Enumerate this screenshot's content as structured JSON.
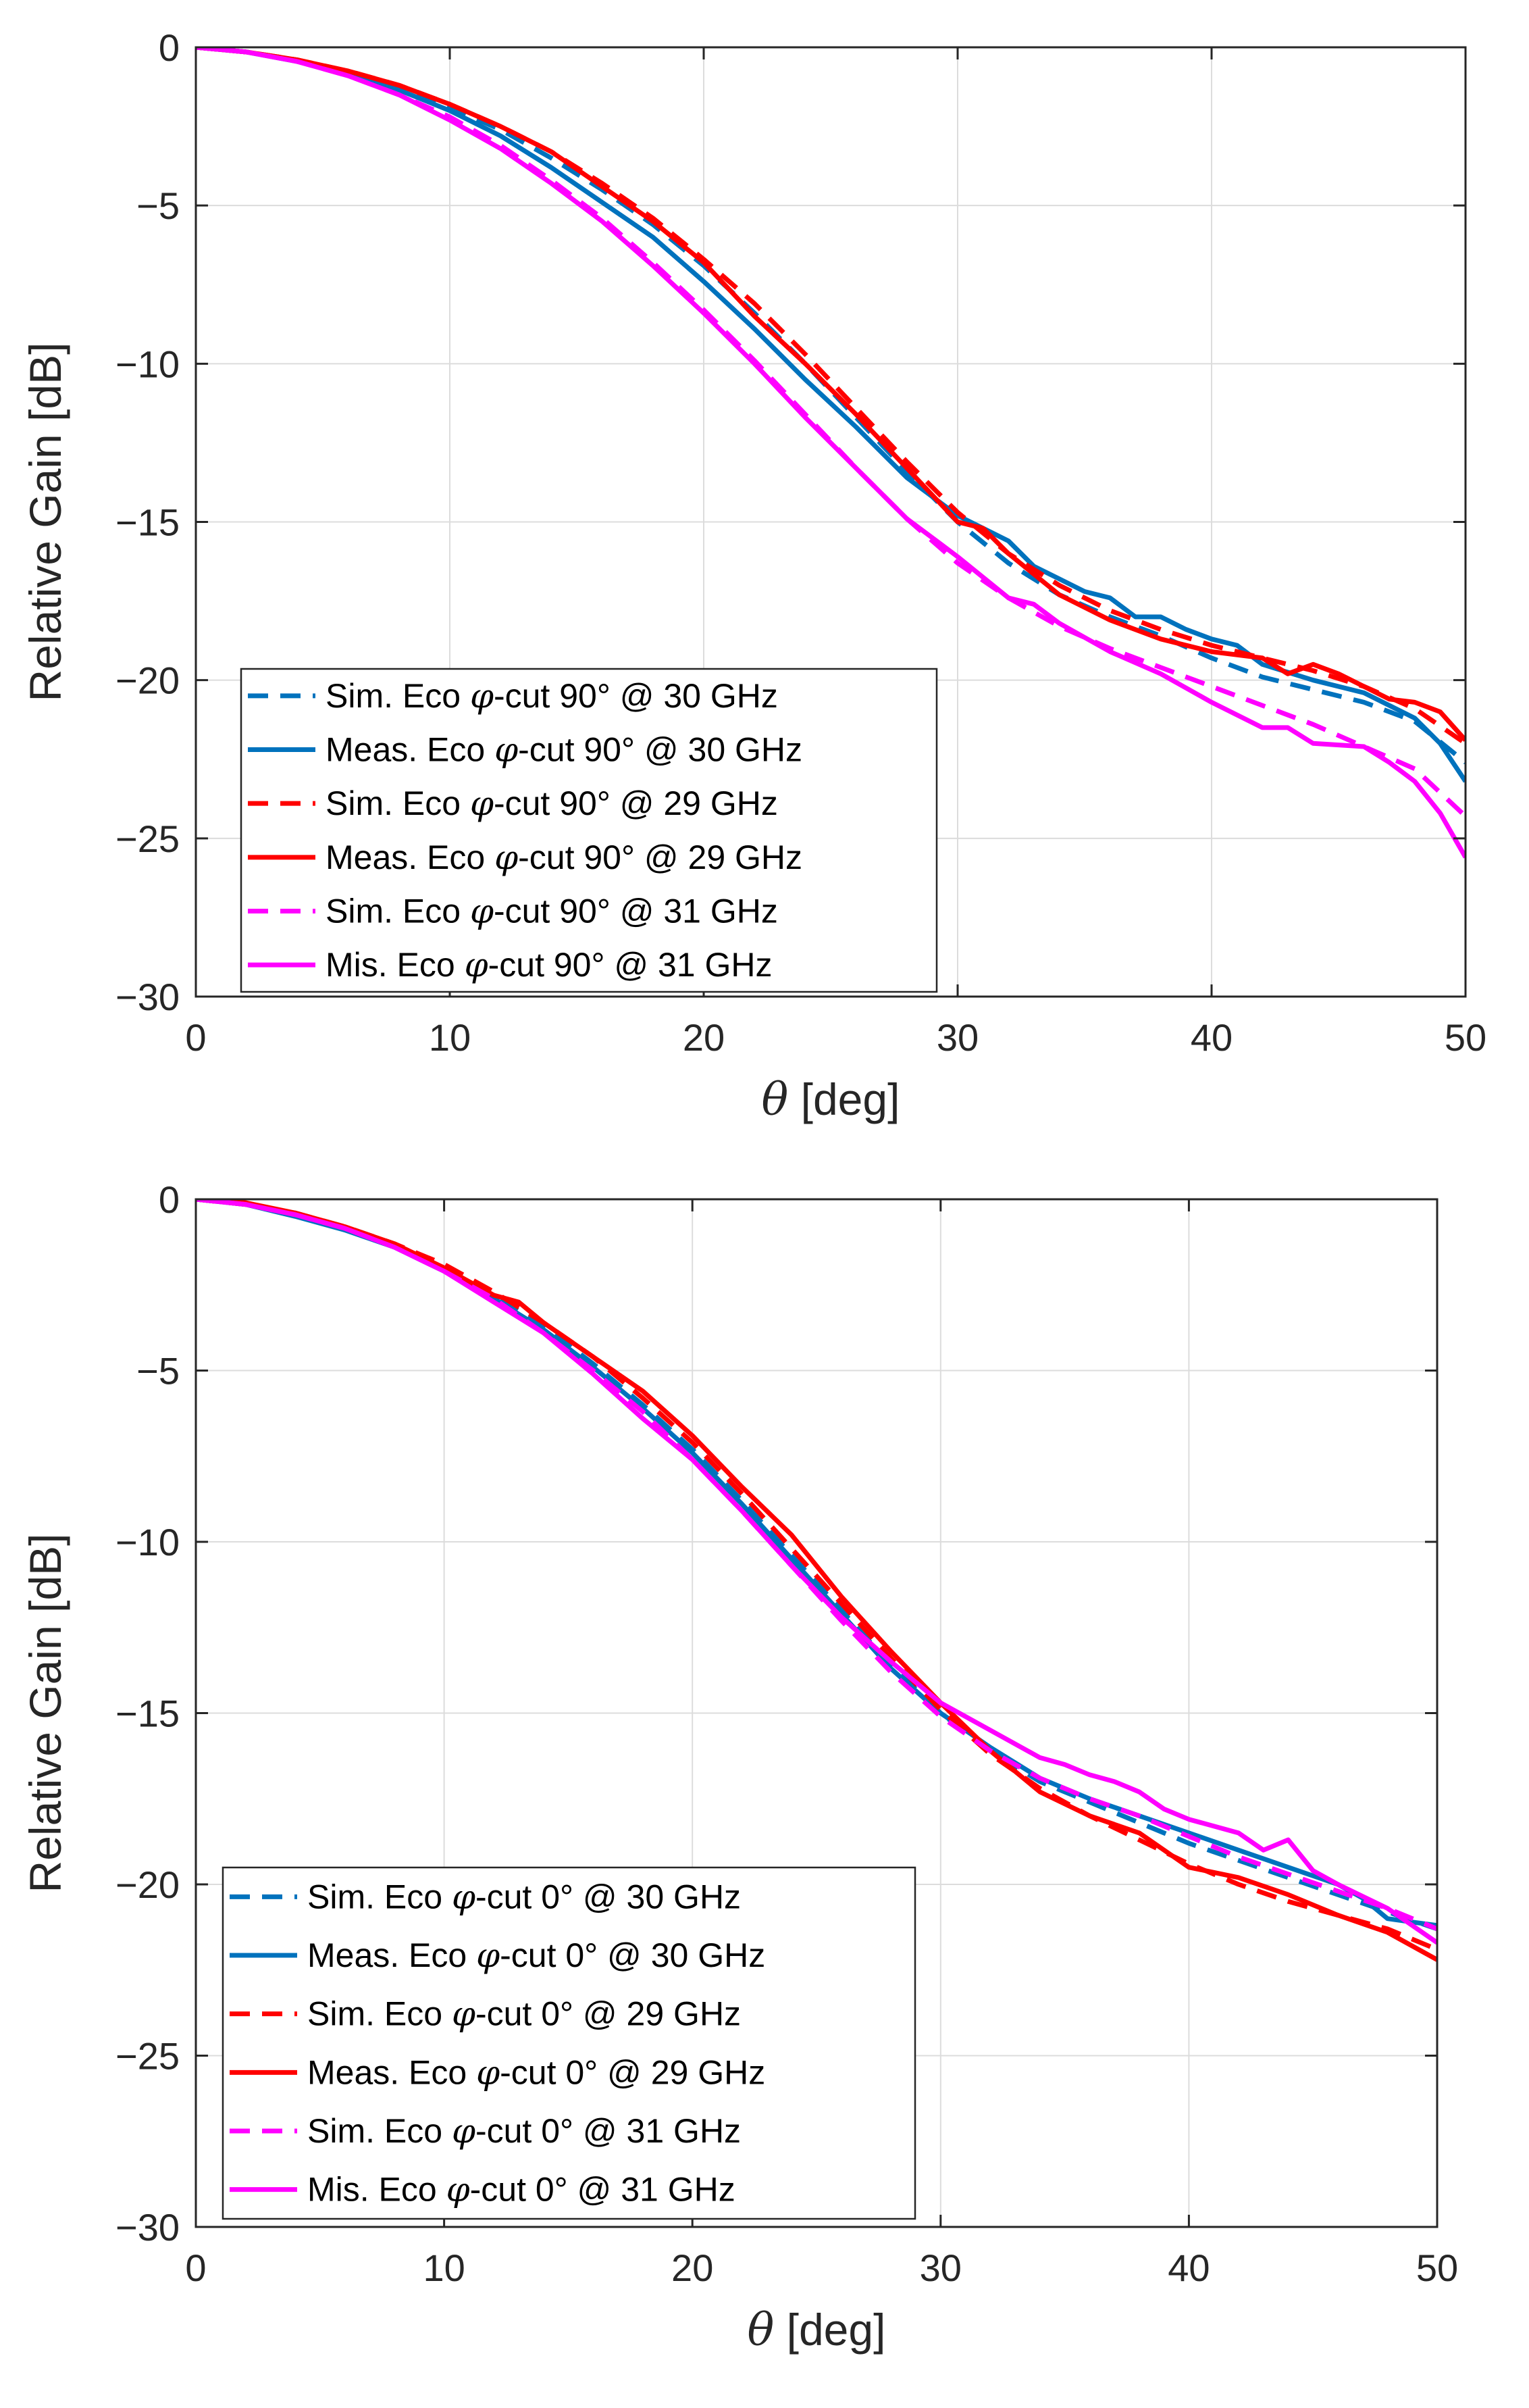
{
  "chart_data": [
    {
      "type": "line",
      "title": "",
      "xlabel_symbol": "θ",
      "xlabel": "[deg]",
      "ylabel": "Relative Gain [dB]",
      "xlim": [
        0,
        50
      ],
      "ylim": [
        -30,
        0
      ],
      "xticks": [
        0,
        10,
        20,
        30,
        40,
        50
      ],
      "yticks": [
        0,
        -5,
        -10,
        -15,
        -20,
        -25,
        -30
      ],
      "xtick_labels": [
        "0",
        "10",
        "20",
        "30",
        "40",
        "50"
      ],
      "ytick_labels": [
        "0",
        "−5",
        "−10",
        "−15",
        "−20",
        "−25",
        "−30"
      ],
      "grid": true,
      "legend_position": "bottom-left",
      "series": [
        {
          "name": "Sim. Eco φ-cut 90° @ 30 GHz",
          "legend": {
            "prefix": "Sim. Eco ",
            "sym": "φ",
            "suffix": "-cut 90° @ 30 GHz"
          },
          "color": "#0072BD",
          "style": "dashed",
          "x": [
            0,
            2,
            4,
            6,
            8,
            10,
            12,
            14,
            16,
            18,
            20,
            22,
            24,
            26,
            28,
            30,
            32,
            34,
            36,
            38,
            40,
            42,
            44,
            46,
            48,
            50
          ],
          "y": [
            0,
            -0.15,
            -0.4,
            -0.8,
            -1.3,
            -1.9,
            -2.6,
            -3.5,
            -4.5,
            -5.6,
            -6.9,
            -8.4,
            -10.0,
            -11.7,
            -13.4,
            -15.0,
            -16.3,
            -17.3,
            -18.0,
            -18.6,
            -19.3,
            -19.9,
            -20.3,
            -20.7,
            -21.3,
            -22.6
          ]
        },
        {
          "name": "Meas. Eco φ-cut 90° @ 30 GHz",
          "legend": {
            "prefix": "Meas. Eco ",
            "sym": "φ",
            "suffix": "-cut 90° @ 30 GHz"
          },
          "color": "#0072BD",
          "style": "solid",
          "x": [
            0,
            2,
            4,
            6,
            8,
            10,
            12,
            14,
            16,
            18,
            20,
            22,
            24,
            26,
            28,
            30,
            32,
            33,
            34,
            35,
            36,
            37,
            38,
            39,
            40,
            41,
            42,
            44,
            46,
            48,
            49,
            50
          ],
          "y": [
            0,
            -0.15,
            -0.45,
            -0.85,
            -1.35,
            -2.0,
            -2.8,
            -3.8,
            -4.9,
            -6.0,
            -7.4,
            -8.9,
            -10.5,
            -12.0,
            -13.6,
            -14.8,
            -15.6,
            -16.4,
            -16.8,
            -17.2,
            -17.4,
            -18.0,
            -18.0,
            -18.4,
            -18.7,
            -18.9,
            -19.5,
            -20.0,
            -20.4,
            -21.2,
            -22.0,
            -23.2
          ]
        },
        {
          "name": "Sim. Eco φ-cut 90° @ 29 GHz",
          "legend": {
            "prefix": "Sim. Eco ",
            "sym": "φ",
            "suffix": "-cut 90° @ 29 GHz"
          },
          "color": "#FF0000",
          "style": "dashed",
          "x": [
            0,
            2,
            4,
            6,
            8,
            10,
            12,
            14,
            16,
            18,
            20,
            22,
            24,
            26,
            28,
            30,
            32,
            34,
            36,
            38,
            40,
            42,
            44,
            46,
            48,
            50
          ],
          "y": [
            0,
            -0.15,
            -0.4,
            -0.75,
            -1.2,
            -1.8,
            -2.5,
            -3.3,
            -4.3,
            -5.4,
            -6.7,
            -8.1,
            -9.7,
            -11.4,
            -13.1,
            -14.7,
            -16.0,
            -17.0,
            -17.8,
            -18.4,
            -18.9,
            -19.3,
            -19.7,
            -20.2,
            -20.9,
            -22.0
          ]
        },
        {
          "name": "Meas. Eco φ-cut 90° @ 29 GHz",
          "legend": {
            "prefix": "Meas. Eco ",
            "sym": "φ",
            "suffix": "-cut 90° @ 29 GHz"
          },
          "color": "#FF0000",
          "style": "solid",
          "x": [
            0,
            2,
            4,
            6,
            8,
            10,
            12,
            14,
            16,
            18,
            20,
            22,
            24,
            26,
            28,
            30,
            31,
            32,
            34,
            36,
            38,
            40,
            42,
            43,
            44,
            45,
            46,
            47,
            48,
            49,
            50
          ],
          "y": [
            0,
            -0.15,
            -0.4,
            -0.75,
            -1.2,
            -1.8,
            -2.5,
            -3.3,
            -4.4,
            -5.5,
            -6.8,
            -8.5,
            -10.0,
            -11.6,
            -13.3,
            -15.0,
            -15.2,
            -16.0,
            -17.3,
            -18.1,
            -18.7,
            -19.1,
            -19.3,
            -19.8,
            -19.5,
            -19.8,
            -20.2,
            -20.6,
            -20.7,
            -21.0,
            -21.9
          ]
        },
        {
          "name": "Sim. Eco φ-cut 90° @ 31 GHz",
          "legend": {
            "prefix": "Sim. Eco ",
            "sym": "φ",
            "suffix": "-cut 90° @ 31 GHz"
          },
          "color": "#FF00FF",
          "style": "dashed",
          "x": [
            0,
            2,
            4,
            6,
            8,
            10,
            12,
            14,
            16,
            18,
            20,
            22,
            24,
            26,
            28,
            30,
            32,
            34,
            36,
            38,
            40,
            42,
            44,
            46,
            48,
            50
          ],
          "y": [
            0,
            -0.15,
            -0.45,
            -0.9,
            -1.5,
            -2.2,
            -3.1,
            -4.2,
            -5.4,
            -6.8,
            -8.3,
            -9.9,
            -11.6,
            -13.3,
            -14.9,
            -16.3,
            -17.4,
            -18.3,
            -19.0,
            -19.6,
            -20.2,
            -20.8,
            -21.4,
            -22.1,
            -22.8,
            -24.3
          ]
        },
        {
          "name": "Mis. Eco φ-cut 90° @ 31 GHz",
          "legend": {
            "prefix": "Mis. Eco ",
            "sym": "φ",
            "suffix": "-cut 90° @ 31 GHz"
          },
          "color": "#FF00FF",
          "style": "solid",
          "x": [
            0,
            2,
            4,
            6,
            8,
            10,
            12,
            14,
            16,
            18,
            20,
            22,
            24,
            26,
            28,
            30,
            32,
            33,
            34,
            36,
            38,
            40,
            42,
            43,
            44,
            46,
            47,
            48,
            49,
            50
          ],
          "y": [
            0,
            -0.15,
            -0.45,
            -0.9,
            -1.5,
            -2.3,
            -3.2,
            -4.3,
            -5.5,
            -6.9,
            -8.4,
            -10.0,
            -11.7,
            -13.3,
            -14.9,
            -16.1,
            -17.4,
            -17.6,
            -18.2,
            -19.1,
            -19.8,
            -20.7,
            -21.5,
            -21.5,
            -22.0,
            -22.1,
            -22.6,
            -23.2,
            -24.2,
            -25.6
          ]
        }
      ]
    },
    {
      "type": "line",
      "title": "",
      "xlabel_symbol": "θ",
      "xlabel": "[deg]",
      "ylabel": "Relative Gain [dB]",
      "xlim": [
        0,
        50
      ],
      "ylim": [
        -30,
        0
      ],
      "xticks": [
        0,
        10,
        20,
        30,
        40,
        50
      ],
      "yticks": [
        0,
        -5,
        -10,
        -15,
        -20,
        -25,
        -30
      ],
      "xtick_labels": [
        "0",
        "10",
        "20",
        "30",
        "40",
        "50"
      ],
      "ytick_labels": [
        "0",
        "−5",
        "−10",
        "−15",
        "−20",
        "−25",
        "−30"
      ],
      "grid": true,
      "legend_position": "bottom-left",
      "series": [
        {
          "name": "Sim. Eco φ-cut 0° @ 30 GHz",
          "legend": {
            "prefix": "Sim. Eco ",
            "sym": "φ",
            "suffix": "-cut 0° @ 30 GHz"
          },
          "color": "#0072BD",
          "style": "dashed",
          "x": [
            0,
            2,
            4,
            6,
            8,
            10,
            12,
            14,
            16,
            18,
            20,
            22,
            24,
            26,
            28,
            30,
            32,
            34,
            36,
            38,
            40,
            42,
            44,
            46,
            48,
            50
          ],
          "y": [
            0,
            -0.15,
            -0.4,
            -0.8,
            -1.3,
            -2.0,
            -2.8,
            -3.7,
            -4.8,
            -6.0,
            -7.3,
            -8.8,
            -10.4,
            -12.0,
            -13.6,
            -15.0,
            -16.1,
            -17.0,
            -17.6,
            -18.2,
            -18.8,
            -19.3,
            -19.8,
            -20.3,
            -20.8,
            -21.3
          ]
        },
        {
          "name": "Meas. Eco φ-cut 0° @ 30 GHz",
          "legend": {
            "prefix": "Meas. Eco ",
            "sym": "φ",
            "suffix": "-cut 0° @ 30 GHz"
          },
          "color": "#0072BD",
          "style": "solid",
          "x": [
            0,
            2,
            4,
            6,
            8,
            10,
            12,
            14,
            16,
            18,
            20,
            22,
            24,
            26,
            28,
            30,
            32,
            34,
            36,
            38,
            40,
            42,
            44,
            46,
            47,
            48,
            49,
            50
          ],
          "y": [
            0,
            -0.15,
            -0.5,
            -0.9,
            -1.4,
            -2.1,
            -2.9,
            -3.8,
            -4.9,
            -6.1,
            -7.4,
            -8.9,
            -10.5,
            -12.1,
            -13.7,
            -15.0,
            -16.0,
            -16.9,
            -17.5,
            -18.0,
            -18.5,
            -19.0,
            -19.5,
            -20.0,
            -20.4,
            -21.0,
            -21.1,
            -21.2
          ]
        },
        {
          "name": "Sim. Eco φ-cut 0° @ 29 GHz",
          "legend": {
            "prefix": "Sim. Eco ",
            "sym": "φ",
            "suffix": "-cut 0° @ 29 GHz"
          },
          "color": "#FF0000",
          "style": "dashed",
          "x": [
            0,
            2,
            4,
            6,
            8,
            10,
            12,
            14,
            16,
            18,
            20,
            22,
            24,
            26,
            28,
            30,
            32,
            34,
            36,
            38,
            40,
            42,
            44,
            46,
            48,
            50
          ],
          "y": [
            0,
            -0.15,
            -0.4,
            -0.8,
            -1.3,
            -1.9,
            -2.7,
            -3.6,
            -4.6,
            -5.8,
            -7.1,
            -8.6,
            -10.2,
            -11.8,
            -13.4,
            -14.9,
            -16.2,
            -17.2,
            -18.0,
            -18.7,
            -19.4,
            -20.0,
            -20.5,
            -20.9,
            -21.3,
            -21.9
          ]
        },
        {
          "name": "Meas. Eco φ-cut 0° @ 29 GHz",
          "legend": {
            "prefix": "Meas. Eco ",
            "sym": "φ",
            "suffix": "-cut 0° @ 29 GHz"
          },
          "color": "#FF0000",
          "style": "solid",
          "x": [
            0,
            2,
            4,
            6,
            8,
            10,
            12,
            13,
            14,
            16,
            18,
            20,
            22,
            24,
            26,
            28,
            30,
            32,
            34,
            36,
            38,
            40,
            42,
            44,
            46,
            48,
            50
          ],
          "y": [
            0,
            -0.1,
            -0.4,
            -0.8,
            -1.3,
            -2.0,
            -2.8,
            -3.0,
            -3.6,
            -4.6,
            -5.6,
            -6.9,
            -8.4,
            -9.8,
            -11.6,
            -13.2,
            -14.7,
            -16.1,
            -17.3,
            -18.0,
            -18.5,
            -19.5,
            -19.8,
            -20.3,
            -20.9,
            -21.4,
            -22.2
          ]
        },
        {
          "name": "Sim. Eco φ-cut 0° @ 31 GHz",
          "legend": {
            "prefix": "Sim. Eco ",
            "sym": "φ",
            "suffix": "-cut 0° @ 31 GHz"
          },
          "color": "#FF00FF",
          "style": "dashed",
          "x": [
            0,
            2,
            4,
            6,
            8,
            10,
            12,
            14,
            16,
            18,
            20,
            22,
            24,
            26,
            28,
            30,
            32,
            34,
            36,
            38,
            40,
            42,
            44,
            46,
            48,
            50
          ],
          "y": [
            0,
            -0.15,
            -0.45,
            -0.85,
            -1.4,
            -2.1,
            -2.9,
            -3.9,
            -5.0,
            -6.2,
            -7.6,
            -9.1,
            -10.7,
            -12.3,
            -13.8,
            -15.1,
            -16.1,
            -16.9,
            -17.5,
            -18.0,
            -18.6,
            -19.2,
            -19.7,
            -20.2,
            -20.7,
            -21.3
          ]
        },
        {
          "name": "Mis. Eco φ-cut 0° @ 31 GHz",
          "legend": {
            "prefix": "Mis. Eco ",
            "sym": "φ",
            "suffix": "-cut 0° @ 31 GHz"
          },
          "color": "#FF00FF",
          "style": "solid",
          "x": [
            0,
            2,
            4,
            6,
            8,
            10,
            12,
            14,
            16,
            18,
            20,
            22,
            24,
            26,
            28,
            30,
            32,
            34,
            35,
            36,
            37,
            38,
            39,
            40,
            42,
            43,
            44,
            45,
            46,
            48,
            50
          ],
          "y": [
            0,
            -0.15,
            -0.45,
            -0.85,
            -1.4,
            -2.1,
            -3.0,
            -3.9,
            -5.1,
            -6.4,
            -7.6,
            -9.1,
            -10.7,
            -12.2,
            -13.5,
            -14.7,
            -15.5,
            -16.3,
            -16.5,
            -16.8,
            -17.0,
            -17.3,
            -17.8,
            -18.1,
            -18.5,
            -19.0,
            -18.7,
            -19.6,
            -20.0,
            -20.7,
            -21.7
          ]
        }
      ]
    }
  ]
}
